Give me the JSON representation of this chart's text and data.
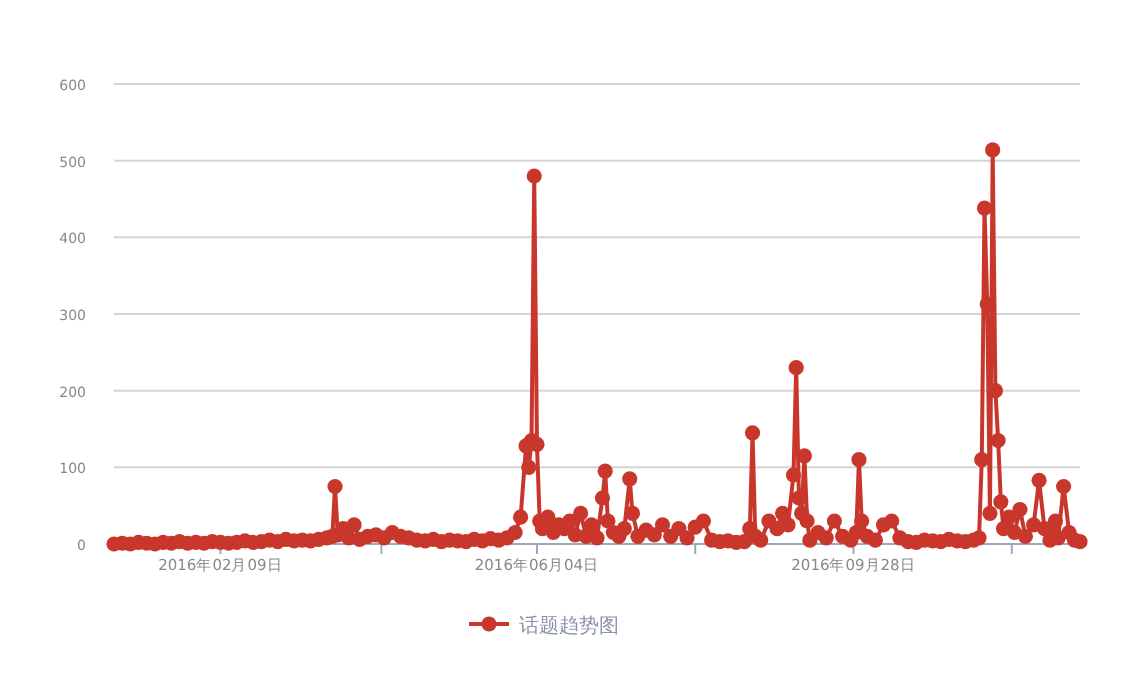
{
  "chart_data": {
    "type": "line",
    "x": [
      "2016-01-01",
      "2016-01-04",
      "2016-01-07",
      "2016-01-10",
      "2016-01-13",
      "2016-01-16",
      "2016-01-19",
      "2016-01-22",
      "2016-01-25",
      "2016-01-28",
      "2016-01-31",
      "2016-02-03",
      "2016-02-06",
      "2016-02-09",
      "2016-02-12",
      "2016-02-15",
      "2016-02-18",
      "2016-02-21",
      "2016-02-24",
      "2016-02-27",
      "2016-03-01",
      "2016-03-04",
      "2016-03-07",
      "2016-03-10",
      "2016-03-13",
      "2016-03-16",
      "2016-03-19",
      "2016-03-21",
      "2016-03-22",
      "2016-03-23",
      "2016-03-25",
      "2016-03-27",
      "2016-03-29",
      "2016-03-31",
      "2016-04-03",
      "2016-04-06",
      "2016-04-09",
      "2016-04-12",
      "2016-04-15",
      "2016-04-18",
      "2016-04-21",
      "2016-04-24",
      "2016-04-27",
      "2016-04-30",
      "2016-05-03",
      "2016-05-06",
      "2016-05-09",
      "2016-05-12",
      "2016-05-15",
      "2016-05-18",
      "2016-05-21",
      "2016-05-24",
      "2016-05-27",
      "2016-05-29",
      "2016-05-31",
      "2016-06-01",
      "2016-06-02",
      "2016-06-03",
      "2016-06-04",
      "2016-06-05",
      "2016-06-06",
      "2016-06-08",
      "2016-06-10",
      "2016-06-12",
      "2016-06-14",
      "2016-06-16",
      "2016-06-18",
      "2016-06-20",
      "2016-06-22",
      "2016-06-24",
      "2016-06-26",
      "2016-06-28",
      "2016-06-29",
      "2016-06-30",
      "2016-07-02",
      "2016-07-04",
      "2016-07-06",
      "2016-07-08",
      "2016-07-09",
      "2016-07-11",
      "2016-07-14",
      "2016-07-17",
      "2016-07-20",
      "2016-07-23",
      "2016-07-26",
      "2016-07-29",
      "2016-08-01",
      "2016-08-04",
      "2016-08-07",
      "2016-08-10",
      "2016-08-13",
      "2016-08-16",
      "2016-08-19",
      "2016-08-21",
      "2016-08-22",
      "2016-08-23",
      "2016-08-25",
      "2016-08-28",
      "2016-08-31",
      "2016-09-02",
      "2016-09-04",
      "2016-09-06",
      "2016-09-07",
      "2016-09-08",
      "2016-09-09",
      "2016-09-10",
      "2016-09-11",
      "2016-09-12",
      "2016-09-15",
      "2016-09-18",
      "2016-09-21",
      "2016-09-24",
      "2016-09-27",
      "2016-09-29",
      "2016-09-30",
      "2016-10-01",
      "2016-10-03",
      "2016-10-06",
      "2016-10-09",
      "2016-10-12",
      "2016-10-15",
      "2016-10-18",
      "2016-10-21",
      "2016-10-24",
      "2016-10-27",
      "2016-10-30",
      "2016-11-02",
      "2016-11-05",
      "2016-11-08",
      "2016-11-11",
      "2016-11-13",
      "2016-11-14",
      "2016-11-15",
      "2016-11-16",
      "2016-11-17",
      "2016-11-18",
      "2016-11-19",
      "2016-11-20",
      "2016-11-21",
      "2016-11-22",
      "2016-11-24",
      "2016-11-26",
      "2016-11-28",
      "2016-11-30",
      "2016-12-03",
      "2016-12-05",
      "2016-12-07",
      "2016-12-09",
      "2016-12-11",
      "2016-12-12",
      "2016-12-14",
      "2016-12-16",
      "2016-12-18",
      "2016-12-20"
    ],
    "series": [
      {
        "name": "话题趋势图",
        "color": "#c9372c",
        "values": [
          0,
          1,
          0,
          2,
          1,
          0,
          2,
          1,
          3,
          1,
          2,
          1,
          3,
          2,
          1,
          2,
          4,
          2,
          3,
          5,
          3,
          6,
          4,
          5,
          4,
          6,
          8,
          10,
          75,
          12,
          20,
          8,
          25,
          6,
          10,
          12,
          8,
          15,
          10,
          8,
          5,
          4,
          6,
          3,
          5,
          4,
          3,
          6,
          4,
          7,
          5,
          8,
          15,
          35,
          128,
          100,
          135,
          480,
          130,
          30,
          20,
          35,
          15,
          25,
          20,
          30,
          12,
          40,
          10,
          25,
          8,
          60,
          95,
          30,
          15,
          10,
          20,
          85,
          40,
          10,
          18,
          12,
          25,
          10,
          20,
          8,
          22,
          30,
          5,
          3,
          4,
          2,
          3,
          20,
          145,
          10,
          5,
          30,
          20,
          40,
          25,
          90,
          230,
          60,
          40,
          115,
          30,
          5,
          15,
          8,
          30,
          10,
          5,
          15,
          110,
          30,
          10,
          5,
          25,
          30,
          8,
          3,
          2,
          5,
          4,
          3,
          6,
          4,
          3,
          5,
          8,
          110,
          438,
          313,
          40,
          514,
          200,
          135,
          55,
          20,
          35,
          15,
          45,
          10,
          25,
          83,
          20,
          5,
          30,
          8,
          75,
          15,
          5,
          3
        ]
      }
    ],
    "xlim": [
      "2016-01-01",
      "2016-12-20"
    ],
    "xticks": [
      {
        "value": "2016-02-09",
        "label": "2016年02月09日"
      },
      {
        "value": "2016-04-08",
        "label": null
      },
      {
        "value": "2016-06-04",
        "label": "2016年06月04日"
      },
      {
        "value": "2016-08-01",
        "label": null
      },
      {
        "value": "2016-09-28",
        "label": "2016年09月28日"
      },
      {
        "value": "2016-11-25",
        "label": null
      }
    ],
    "ylim": [
      0,
      600
    ],
    "yticks": [
      0,
      100,
      200,
      300,
      400,
      500,
      600
    ],
    "grid": "y",
    "legend": "bottom",
    "marker": "circle",
    "line_style": "solid"
  }
}
